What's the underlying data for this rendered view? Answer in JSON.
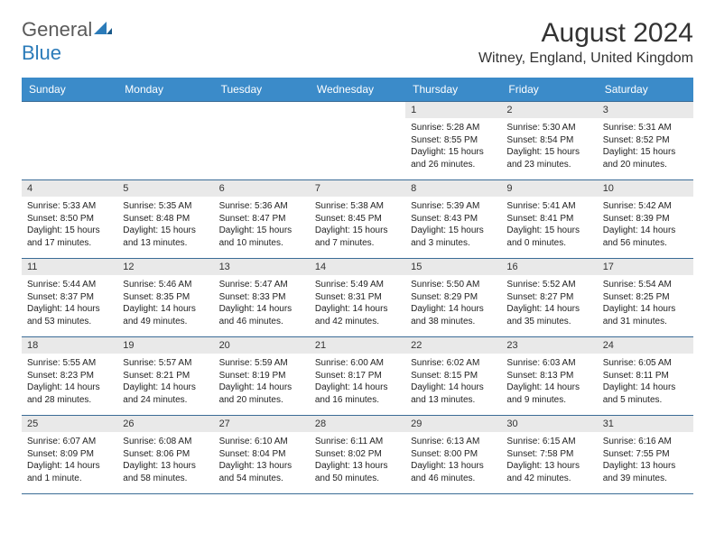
{
  "logo": {
    "textGray": "General",
    "textBlue": "Blue"
  },
  "header": {
    "monthTitle": "August 2024",
    "location": "Witney, England, United Kingdom"
  },
  "colors": {
    "headerBg": "#3b8bc9",
    "headerText": "#ffffff",
    "rowBorder": "#3b6c96",
    "dayBarBg": "#e9e9e9",
    "bodyText": "#222222",
    "logoGray": "#5a5a5a",
    "logoBlue": "#2b7bb9"
  },
  "dayNames": [
    "Sunday",
    "Monday",
    "Tuesday",
    "Wednesday",
    "Thursday",
    "Friday",
    "Saturday"
  ],
  "weeks": [
    [
      {
        "day": "",
        "sunrise": "",
        "sunset": "",
        "daylight": ""
      },
      {
        "day": "",
        "sunrise": "",
        "sunset": "",
        "daylight": ""
      },
      {
        "day": "",
        "sunrise": "",
        "sunset": "",
        "daylight": ""
      },
      {
        "day": "",
        "sunrise": "",
        "sunset": "",
        "daylight": ""
      },
      {
        "day": "1",
        "sunrise": "Sunrise: 5:28 AM",
        "sunset": "Sunset: 8:55 PM",
        "daylight": "Daylight: 15 hours and 26 minutes."
      },
      {
        "day": "2",
        "sunrise": "Sunrise: 5:30 AM",
        "sunset": "Sunset: 8:54 PM",
        "daylight": "Daylight: 15 hours and 23 minutes."
      },
      {
        "day": "3",
        "sunrise": "Sunrise: 5:31 AM",
        "sunset": "Sunset: 8:52 PM",
        "daylight": "Daylight: 15 hours and 20 minutes."
      }
    ],
    [
      {
        "day": "4",
        "sunrise": "Sunrise: 5:33 AM",
        "sunset": "Sunset: 8:50 PM",
        "daylight": "Daylight: 15 hours and 17 minutes."
      },
      {
        "day": "5",
        "sunrise": "Sunrise: 5:35 AM",
        "sunset": "Sunset: 8:48 PM",
        "daylight": "Daylight: 15 hours and 13 minutes."
      },
      {
        "day": "6",
        "sunrise": "Sunrise: 5:36 AM",
        "sunset": "Sunset: 8:47 PM",
        "daylight": "Daylight: 15 hours and 10 minutes."
      },
      {
        "day": "7",
        "sunrise": "Sunrise: 5:38 AM",
        "sunset": "Sunset: 8:45 PM",
        "daylight": "Daylight: 15 hours and 7 minutes."
      },
      {
        "day": "8",
        "sunrise": "Sunrise: 5:39 AM",
        "sunset": "Sunset: 8:43 PM",
        "daylight": "Daylight: 15 hours and 3 minutes."
      },
      {
        "day": "9",
        "sunrise": "Sunrise: 5:41 AM",
        "sunset": "Sunset: 8:41 PM",
        "daylight": "Daylight: 15 hours and 0 minutes."
      },
      {
        "day": "10",
        "sunrise": "Sunrise: 5:42 AM",
        "sunset": "Sunset: 8:39 PM",
        "daylight": "Daylight: 14 hours and 56 minutes."
      }
    ],
    [
      {
        "day": "11",
        "sunrise": "Sunrise: 5:44 AM",
        "sunset": "Sunset: 8:37 PM",
        "daylight": "Daylight: 14 hours and 53 minutes."
      },
      {
        "day": "12",
        "sunrise": "Sunrise: 5:46 AM",
        "sunset": "Sunset: 8:35 PM",
        "daylight": "Daylight: 14 hours and 49 minutes."
      },
      {
        "day": "13",
        "sunrise": "Sunrise: 5:47 AM",
        "sunset": "Sunset: 8:33 PM",
        "daylight": "Daylight: 14 hours and 46 minutes."
      },
      {
        "day": "14",
        "sunrise": "Sunrise: 5:49 AM",
        "sunset": "Sunset: 8:31 PM",
        "daylight": "Daylight: 14 hours and 42 minutes."
      },
      {
        "day": "15",
        "sunrise": "Sunrise: 5:50 AM",
        "sunset": "Sunset: 8:29 PM",
        "daylight": "Daylight: 14 hours and 38 minutes."
      },
      {
        "day": "16",
        "sunrise": "Sunrise: 5:52 AM",
        "sunset": "Sunset: 8:27 PM",
        "daylight": "Daylight: 14 hours and 35 minutes."
      },
      {
        "day": "17",
        "sunrise": "Sunrise: 5:54 AM",
        "sunset": "Sunset: 8:25 PM",
        "daylight": "Daylight: 14 hours and 31 minutes."
      }
    ],
    [
      {
        "day": "18",
        "sunrise": "Sunrise: 5:55 AM",
        "sunset": "Sunset: 8:23 PM",
        "daylight": "Daylight: 14 hours and 28 minutes."
      },
      {
        "day": "19",
        "sunrise": "Sunrise: 5:57 AM",
        "sunset": "Sunset: 8:21 PM",
        "daylight": "Daylight: 14 hours and 24 minutes."
      },
      {
        "day": "20",
        "sunrise": "Sunrise: 5:59 AM",
        "sunset": "Sunset: 8:19 PM",
        "daylight": "Daylight: 14 hours and 20 minutes."
      },
      {
        "day": "21",
        "sunrise": "Sunrise: 6:00 AM",
        "sunset": "Sunset: 8:17 PM",
        "daylight": "Daylight: 14 hours and 16 minutes."
      },
      {
        "day": "22",
        "sunrise": "Sunrise: 6:02 AM",
        "sunset": "Sunset: 8:15 PM",
        "daylight": "Daylight: 14 hours and 13 minutes."
      },
      {
        "day": "23",
        "sunrise": "Sunrise: 6:03 AM",
        "sunset": "Sunset: 8:13 PM",
        "daylight": "Daylight: 14 hours and 9 minutes."
      },
      {
        "day": "24",
        "sunrise": "Sunrise: 6:05 AM",
        "sunset": "Sunset: 8:11 PM",
        "daylight": "Daylight: 14 hours and 5 minutes."
      }
    ],
    [
      {
        "day": "25",
        "sunrise": "Sunrise: 6:07 AM",
        "sunset": "Sunset: 8:09 PM",
        "daylight": "Daylight: 14 hours and 1 minute."
      },
      {
        "day": "26",
        "sunrise": "Sunrise: 6:08 AM",
        "sunset": "Sunset: 8:06 PM",
        "daylight": "Daylight: 13 hours and 58 minutes."
      },
      {
        "day": "27",
        "sunrise": "Sunrise: 6:10 AM",
        "sunset": "Sunset: 8:04 PM",
        "daylight": "Daylight: 13 hours and 54 minutes."
      },
      {
        "day": "28",
        "sunrise": "Sunrise: 6:11 AM",
        "sunset": "Sunset: 8:02 PM",
        "daylight": "Daylight: 13 hours and 50 minutes."
      },
      {
        "day": "29",
        "sunrise": "Sunrise: 6:13 AM",
        "sunset": "Sunset: 8:00 PM",
        "daylight": "Daylight: 13 hours and 46 minutes."
      },
      {
        "day": "30",
        "sunrise": "Sunrise: 6:15 AM",
        "sunset": "Sunset: 7:58 PM",
        "daylight": "Daylight: 13 hours and 42 minutes."
      },
      {
        "day": "31",
        "sunrise": "Sunrise: 6:16 AM",
        "sunset": "Sunset: 7:55 PM",
        "daylight": "Daylight: 13 hours and 39 minutes."
      }
    ]
  ]
}
